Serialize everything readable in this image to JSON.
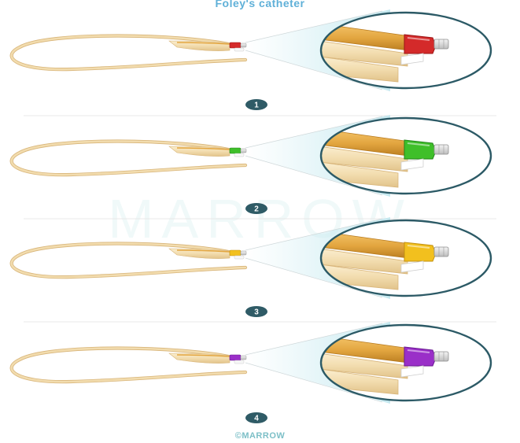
{
  "figure": {
    "title": "Foley's catheter",
    "watermark": "MARROW",
    "copyright": "©MARROW"
  },
  "panels": [
    {
      "label": "1",
      "balloon_color": "#d42a2a",
      "balloon_dark": "#9c1515"
    },
    {
      "label": "2",
      "balloon_color": "#3fbf2a",
      "balloon_dark": "#23851a"
    },
    {
      "label": "3",
      "balloon_color": "#f2c01e",
      "balloon_dark": "#c29010"
    },
    {
      "label": "4",
      "balloon_color": "#9a2fc8",
      "balloon_dark": "#6a1a92"
    }
  ],
  "colors": {
    "catheter_body": "#f2dcae",
    "catheter_edge": "#d8b57a",
    "tube_amber": "#e3a640",
    "tube_amber_dark": "#b77a1e",
    "badge": "#2f5b66",
    "circle_outline": "#2c5a66",
    "connector": "#d9d9d9"
  }
}
